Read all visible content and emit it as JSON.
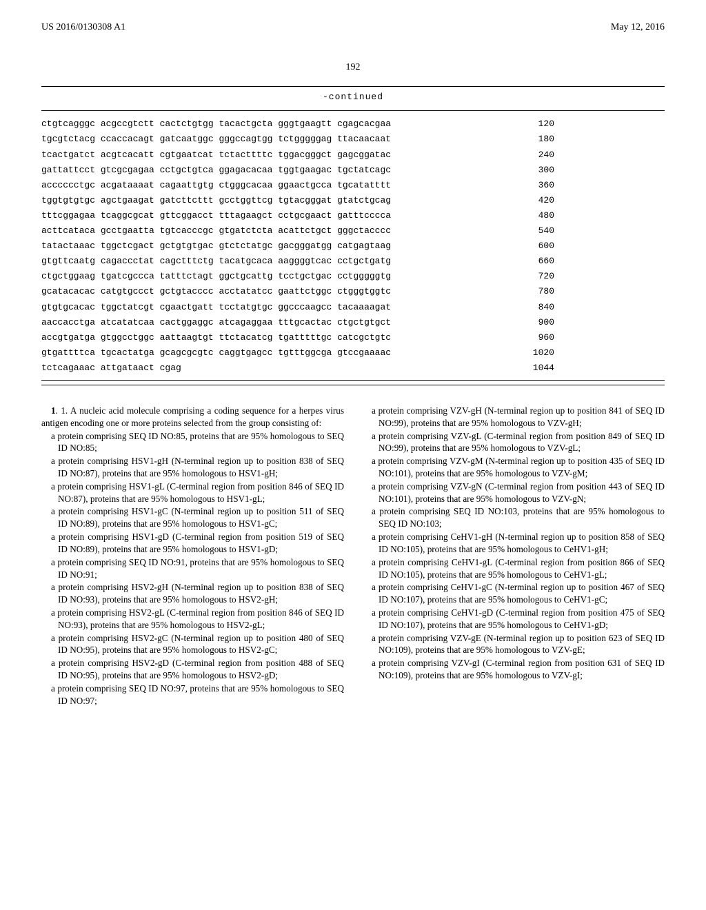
{
  "header": {
    "pub_no": "US 2016/0130308 A1",
    "pub_date": "May 12, 2016"
  },
  "page_number": "192",
  "seq": {
    "title": "-continued",
    "rows": [
      {
        "s": "ctgtcagggc acgccgtctt cactctgtgg tacactgcta gggtgaagtt cgagcacgaa",
        "n": "120"
      },
      {
        "s": "tgcgtctacg ccaccacagt gatcaatggc gggccagtgg tctgggggag ttacaacaat",
        "n": "180"
      },
      {
        "s": "tcactgatct acgtcacatt cgtgaatcat tctacttttc tggacgggct gagcggatac",
        "n": "240"
      },
      {
        "s": "gattattcct gtcgcgagaa cctgctgtca ggagacacaa tggtgaagac tgctatcagc",
        "n": "300"
      },
      {
        "s": "acccccctgc acgataaaat cagaattgtg ctgggcacaa ggaactgcca tgcatatttt",
        "n": "360"
      },
      {
        "s": "tggtgtgtgc agctgaagat gatcttcttt gcctggttcg tgtacgggat gtatctgcag",
        "n": "420"
      },
      {
        "s": "tttcggagaa tcaggcgcat gttcggacct tttagaagct cctgcgaact gatttcccca",
        "n": "480"
      },
      {
        "s": "acttcataca gcctgaatta tgtcacccgc gtgatctcta acattctgct gggctacccc",
        "n": "540"
      },
      {
        "s": "tatactaaac tggctcgact gctgtgtgac gtctctatgc gacgggatgg catgagtaag",
        "n": "600"
      },
      {
        "s": "gtgttcaatg cagaccctat cagctttctg tacatgcaca aaggggtcac cctgctgatg",
        "n": "660"
      },
      {
        "s": "ctgctggaag tgatcgccca tatttctagt ggctgcattg tcctgctgac cctgggggtg",
        "n": "720"
      },
      {
        "s": "gcatacacac catgtgccct gctgtacccc acctatatcc gaattctggc ctgggtggtc",
        "n": "780"
      },
      {
        "s": "gtgtgcacac tggctatcgt cgaactgatt tcctatgtgc ggcccaagcc tacaaaagat",
        "n": "840"
      },
      {
        "s": "aaccacctga atcatatcaa cactggaggc atcagaggaa tttgcactac ctgctgtgct",
        "n": "900"
      },
      {
        "s": "accgtgatga gtggcctggc aattaagtgt ttctacatcg tgatttttgc catcgctgtc",
        "n": "960"
      },
      {
        "s": "gtgattttca tgcactatga gcagcgcgtc caggtgagcc tgtttggcga gtccgaaaac",
        "n": "1020"
      },
      {
        "s": "tctcagaaac attgataact cgag",
        "n": "1044"
      }
    ]
  },
  "claim": {
    "lead1": "1. A nucleic acid molecule comprising a coding sequence for a herpes virus antigen encoding one or more proteins selected from the group consisting of:",
    "left": [
      "a protein comprising SEQ ID NO:85, proteins that are 95% homologous to SEQ ID NO:85;",
      "a protein comprising HSV1-gH (N-terminal region up to position 838 of SEQ ID NO:87), proteins that are 95% homologous to HSV1-gH;",
      "a protein comprising HSV1-gL (C-terminal region from position 846 of SEQ ID NO:87), proteins that are 95% homologous to HSV1-gL;",
      "a protein comprising HSV1-gC (N-terminal region up to position 511 of SEQ ID NO:89), proteins that are 95% homologous to HSV1-gC;",
      "a protein comprising HSV1-gD (C-terminal region from position 519 of SEQ ID NO:89), proteins that are 95% homologous to HSV1-gD;",
      "a protein comprising SEQ ID NO:91, proteins that are 95% homologous to SEQ ID NO:91;",
      "a protein comprising HSV2-gH (N-terminal region up to position 838 of SEQ ID NO:93), proteins that are 95% homologous to HSV2-gH;",
      "a protein comprising HSV2-gL (C-terminal region from position 846 of SEQ ID NO:93), proteins that are 95% homologous to HSV2-gL;",
      "a protein comprising HSV2-gC (N-terminal region up to position 480 of SEQ ID NO:95), proteins that are 95% homologous to HSV2-gC;",
      "a protein comprising HSV2-gD (C-terminal region from position 488 of SEQ ID NO:95), proteins that are 95% homologous to HSV2-gD;",
      "a protein comprising SEQ ID NO:97, proteins that are 95% homologous to SEQ ID NO:97;"
    ],
    "right": [
      "a protein comprising VZV-gH (N-terminal region up to position 841 of SEQ ID NO:99), proteins that are 95% homologous to VZV-gH;",
      "a protein comprising VZV-gL (C-terminal region from position 849 of SEQ ID NO:99), proteins that are 95% homologous to VZV-gL;",
      "a protein comprising VZV-gM (N-terminal region up to position 435 of SEQ ID NO:101), proteins that are 95% homologous to VZV-gM;",
      "a protein comprising VZV-gN (C-terminal region from position 443 of SEQ ID NO:101), proteins that are 95% homologous to VZV-gN;",
      "a protein comprising SEQ ID NO:103, proteins that are 95% homologous to SEQ ID NO:103;",
      "a protein comprising CeHV1-gH (N-terminal region up to position 858 of SEQ ID NO:105), proteins that are 95% homologous to CeHV1-gH;",
      "a protein comprising CeHV1-gL (C-terminal region from position 866 of SEQ ID NO:105), proteins that are 95% homologous to CeHV1-gL;",
      "a protein comprising CeHV1-gC (N-terminal region up to position 467 of SEQ ID NO:107), proteins that are 95% homologous to CeHV1-gC;",
      "a protein comprising CeHV1-gD (C-terminal region from position 475 of SEQ ID NO:107), proteins that are 95% homologous to CeHV1-gD;",
      "a protein comprising VZV-gE (N-terminal region up to position 623 of SEQ ID NO:109), proteins that are 95% homologous to VZV-gE;",
      "a protein comprising VZV-gI (C-terminal region from position 631 of SEQ ID NO:109), proteins that are 95% homologous to VZV-gI;"
    ]
  }
}
